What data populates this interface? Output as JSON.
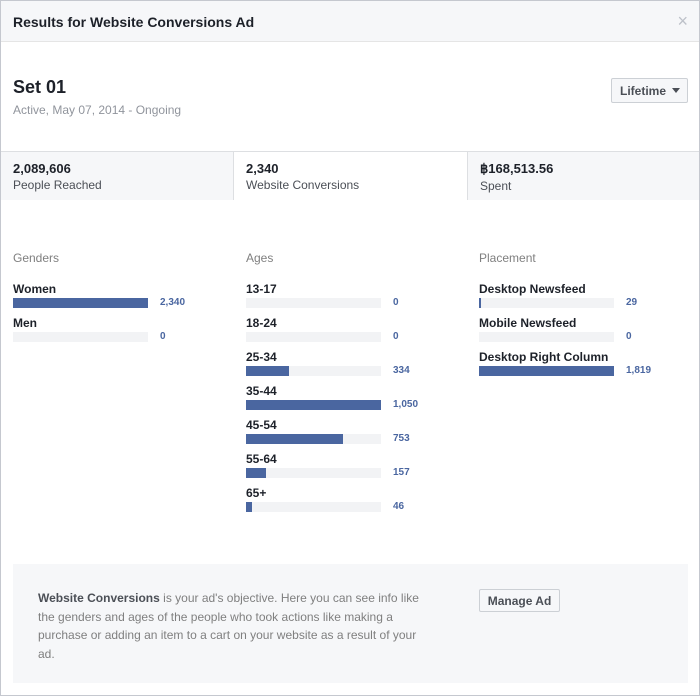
{
  "dialog": {
    "title": "Results for Website Conversions Ad",
    "close": "×"
  },
  "set": {
    "name": "Set 01",
    "status": "Active, May 07, 2014 - Ongoing"
  },
  "range_button": {
    "label": "Lifetime",
    "icon": "chevron-down-icon"
  },
  "stats": [
    {
      "value": "2,089,606",
      "label": "People Reached"
    },
    {
      "value": "2,340",
      "label": "Website Conversions"
    },
    {
      "value": "฿168,513.56",
      "label": "Spent"
    }
  ],
  "genders": {
    "heading": "Genders",
    "rows": [
      {
        "label": "Women",
        "value": "2,340",
        "fraction": 1.0
      },
      {
        "label": "Men",
        "value": "0",
        "fraction": 0
      }
    ]
  },
  "ages": {
    "heading": "Ages",
    "rows": [
      {
        "label": "13-17",
        "value": "0",
        "fraction": 0
      },
      {
        "label": "18-24",
        "value": "0",
        "fraction": 0
      },
      {
        "label": "25-34",
        "value": "334",
        "fraction": 0.318
      },
      {
        "label": "35-44",
        "value": "1,050",
        "fraction": 1.0
      },
      {
        "label": "45-54",
        "value": "753",
        "fraction": 0.717
      },
      {
        "label": "55-64",
        "value": "157",
        "fraction": 0.15
      },
      {
        "label": "65+",
        "value": "46",
        "fraction": 0.044
      }
    ]
  },
  "placement": {
    "heading": "Placement",
    "rows": [
      {
        "label": "Desktop Newsfeed",
        "value": "29",
        "fraction": 0.016
      },
      {
        "label": "Mobile Newsfeed",
        "value": "0",
        "fraction": 0
      },
      {
        "label": "Desktop Right Column",
        "value": "1,819",
        "fraction": 1.0
      }
    ]
  },
  "info": {
    "lead": "Website Conversions",
    "body": " is your ad's objective. Here you can see info like the genders and ages of the people who took actions like making a purchase or adding an item to a cart on your website as a result of your ad."
  },
  "manage_button": {
    "label": "Manage Ad"
  },
  "colors": {
    "bar": "#4a66a0",
    "track": "#f2f3f5",
    "value_text": "#4a66a0"
  }
}
